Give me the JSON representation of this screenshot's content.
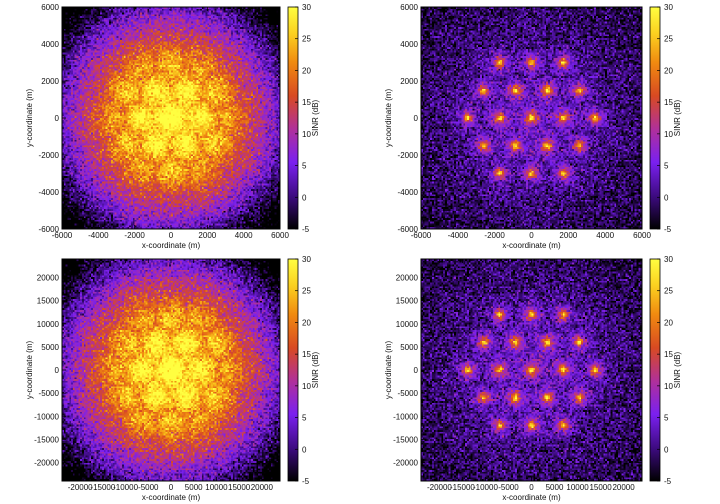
{
  "chart_data": [
    {
      "type": "heatmap",
      "pattern": "wide-coverage",
      "xlabel": "x-coordinate (m)",
      "ylabel": "y-coordinate (m)",
      "colorbar_label": "SINR (dB)",
      "xlim": [
        -6000,
        6000
      ],
      "ylim": [
        -6000,
        6000
      ],
      "xticks": [
        "-6000",
        "-4000",
        "-2000",
        "0",
        "2000",
        "4000",
        "6000"
      ],
      "yticks": [
        "-6000",
        "-4000",
        "-2000",
        "0",
        "2000",
        "4000",
        "6000"
      ],
      "clim": [
        -5,
        30
      ],
      "cticks": [
        "-5",
        "0",
        "5",
        "10",
        "15",
        "20",
        "25",
        "30"
      ],
      "sites": [
        [
          0,
          0
        ],
        [
          1732,
          0
        ],
        [
          -1732,
          0
        ],
        [
          866,
          1500
        ],
        [
          -866,
          1500
        ],
        [
          866,
          -1500
        ],
        [
          -866,
          -1500
        ],
        [
          3464,
          0
        ],
        [
          -3464,
          0
        ],
        [
          2598,
          1500
        ],
        [
          -2598,
          1500
        ],
        [
          2598,
          -1500
        ],
        [
          -2598,
          -1500
        ],
        [
          1732,
          3000
        ],
        [
          -1732,
          3000
        ],
        [
          1732,
          -3000
        ],
        [
          -1732,
          -3000
        ],
        [
          0,
          3000
        ],
        [
          0,
          -3000
        ]
      ]
    },
    {
      "type": "heatmap",
      "pattern": "point-hotspots",
      "xlabel": "x-coordinate (m)",
      "ylabel": "y-coordinate (m)",
      "colorbar_label": "SINR (dB)",
      "xlim": [
        -6000,
        6000
      ],
      "ylim": [
        -6000,
        6000
      ],
      "xticks": [
        "-6000",
        "-4000",
        "-2000",
        "0",
        "2000",
        "4000",
        "6000"
      ],
      "yticks": [
        "-6000",
        "-4000",
        "-2000",
        "0",
        "2000",
        "4000",
        "6000"
      ],
      "clim": [
        -5,
        30
      ],
      "cticks": [
        "-5",
        "0",
        "5",
        "10",
        "15",
        "20",
        "25",
        "30"
      ],
      "sites": [
        [
          0,
          0
        ],
        [
          1732,
          0
        ],
        [
          -1732,
          0
        ],
        [
          866,
          1500
        ],
        [
          -866,
          1500
        ],
        [
          866,
          -1500
        ],
        [
          -866,
          -1500
        ],
        [
          3464,
          0
        ],
        [
          -3464,
          0
        ],
        [
          2598,
          1500
        ],
        [
          -2598,
          1500
        ],
        [
          2598,
          -1500
        ],
        [
          -2598,
          -1500
        ],
        [
          1732,
          3000
        ],
        [
          -1732,
          3000
        ],
        [
          1732,
          -3000
        ],
        [
          -1732,
          -3000
        ],
        [
          0,
          3000
        ],
        [
          0,
          -3000
        ]
      ]
    },
    {
      "type": "heatmap",
      "pattern": "wide-coverage",
      "xlabel": "x-coordinate (m)",
      "ylabel": "y-coordinate (m)",
      "colorbar_label": "SINR (dB)",
      "xlim": [
        -24000,
        24000
      ],
      "ylim": [
        -24000,
        24000
      ],
      "xticks": [
        "-20000",
        "-15000",
        "-10000",
        "-5000",
        "0",
        "5000",
        "10000",
        "15000",
        "20000"
      ],
      "yticks": [
        "-20000",
        "-15000",
        "-10000",
        "-5000",
        "0",
        "5000",
        "10000",
        "15000",
        "20000"
      ],
      "clim": [
        -5,
        30
      ],
      "cticks": [
        "-5",
        "0",
        "5",
        "10",
        "15",
        "20",
        "25",
        "30"
      ],
      "sites": [
        [
          0,
          0
        ],
        [
          6928,
          0
        ],
        [
          -6928,
          0
        ],
        [
          3464,
          6000
        ],
        [
          -3464,
          6000
        ],
        [
          3464,
          -6000
        ],
        [
          -3464,
          -6000
        ],
        [
          13856,
          0
        ],
        [
          -13856,
          0
        ],
        [
          10392,
          6000
        ],
        [
          -10392,
          6000
        ],
        [
          10392,
          -6000
        ],
        [
          -10392,
          -6000
        ],
        [
          6928,
          12000
        ],
        [
          -6928,
          12000
        ],
        [
          6928,
          -12000
        ],
        [
          -6928,
          -12000
        ],
        [
          0,
          12000
        ],
        [
          0,
          -12000
        ]
      ]
    },
    {
      "type": "heatmap",
      "pattern": "point-hotspots",
      "xlabel": "x-coordinate (m)",
      "ylabel": "y-coordinate (m)",
      "colorbar_label": "SINR (dB)",
      "xlim": [
        -24000,
        24000
      ],
      "ylim": [
        -24000,
        24000
      ],
      "xticks": [
        "-20000",
        "-15000",
        "-10000",
        "-5000",
        "0",
        "5000",
        "10000",
        "15000",
        "20000"
      ],
      "yticks": [
        "-20000",
        "-15000",
        "-10000",
        "-5000",
        "0",
        "5000",
        "10000",
        "15000",
        "20000"
      ],
      "clim": [
        -5,
        30
      ],
      "cticks": [
        "-5",
        "0",
        "5",
        "10",
        "15",
        "20",
        "25",
        "30"
      ],
      "sites": [
        [
          0,
          0
        ],
        [
          6928,
          0
        ],
        [
          -6928,
          0
        ],
        [
          3464,
          6000
        ],
        [
          -3464,
          6000
        ],
        [
          3464,
          -6000
        ],
        [
          -3464,
          -6000
        ],
        [
          13856,
          0
        ],
        [
          -13856,
          0
        ],
        [
          10392,
          6000
        ],
        [
          -10392,
          6000
        ],
        [
          10392,
          -6000
        ],
        [
          -10392,
          -6000
        ],
        [
          6928,
          12000
        ],
        [
          -6928,
          12000
        ],
        [
          6928,
          -12000
        ],
        [
          -6928,
          -12000
        ],
        [
          0,
          12000
        ],
        [
          0,
          -12000
        ]
      ]
    }
  ]
}
